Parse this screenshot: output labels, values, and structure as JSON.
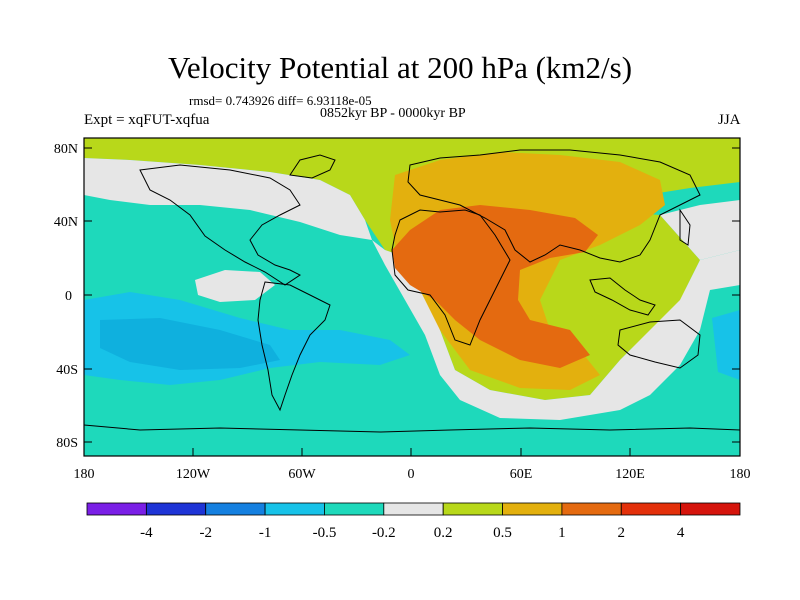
{
  "title": "Velocity Potential at 200 hPa (km2/s)",
  "stats": "rmsd= 0.743926 diff= 6.93118e-05",
  "period": "0852kyr BP - 0000kyr BP",
  "experiment": "Expt = xqFUT-xqfua",
  "season": "JJA",
  "lat_labels": [
    "80N",
    "40N",
    "0",
    "40S",
    "80S"
  ],
  "lon_labels": [
    "180",
    "120W",
    "60W",
    "0",
    "60E",
    "120E",
    "180"
  ],
  "colorbar": {
    "labels": [
      "-4",
      "-2",
      "-1",
      "-0.5",
      "-0.2",
      "0.2",
      "0.5",
      "1",
      "2",
      "4"
    ],
    "colors": [
      "#7a1fe6",
      "#1e34d6",
      "#1580e0",
      "#17c2e8",
      "#1ed9bb",
      "#e6e6e6",
      "#b8d81a",
      "#e3b00e",
      "#e46a10",
      "#e3300a",
      "#d5140c"
    ]
  },
  "chart_data": {
    "type": "heatmap",
    "title": "Velocity Potential at 200 hPa (km2/s)",
    "field_units": "km2/s",
    "xlim": [
      -180,
      180
    ],
    "ylim": [
      -90,
      90
    ],
    "contour_levels": [
      -4,
      -2,
      -1,
      -0.5,
      -0.2,
      0.2,
      0.5,
      1,
      2,
      4
    ],
    "regions": [
      {
        "name": "central/east Pacific",
        "range": "-0.5 to -0.2"
      },
      {
        "name": "south-east Pacific",
        "range": "-1 to -0.5"
      },
      {
        "name": "Atlantic and Southern Ocean",
        "range": "-0.5 to -0.2"
      },
      {
        "name": "North America / western Atlantic",
        "range": "-0.2 to 0.2"
      },
      {
        "name": "northern high latitudes",
        "range": "0.2 to 0.5"
      },
      {
        "name": "Eurasia",
        "range": "0.5 to 1"
      },
      {
        "name": "North Africa / Arabia / western Indian Ocean",
        "range": "1 to 2"
      },
      {
        "name": "Maritime Continent",
        "range": "0.2 to 0.5"
      },
      {
        "name": "western Pacific (east of Australia)",
        "range": "-0.5 to -0.2"
      }
    ]
  }
}
